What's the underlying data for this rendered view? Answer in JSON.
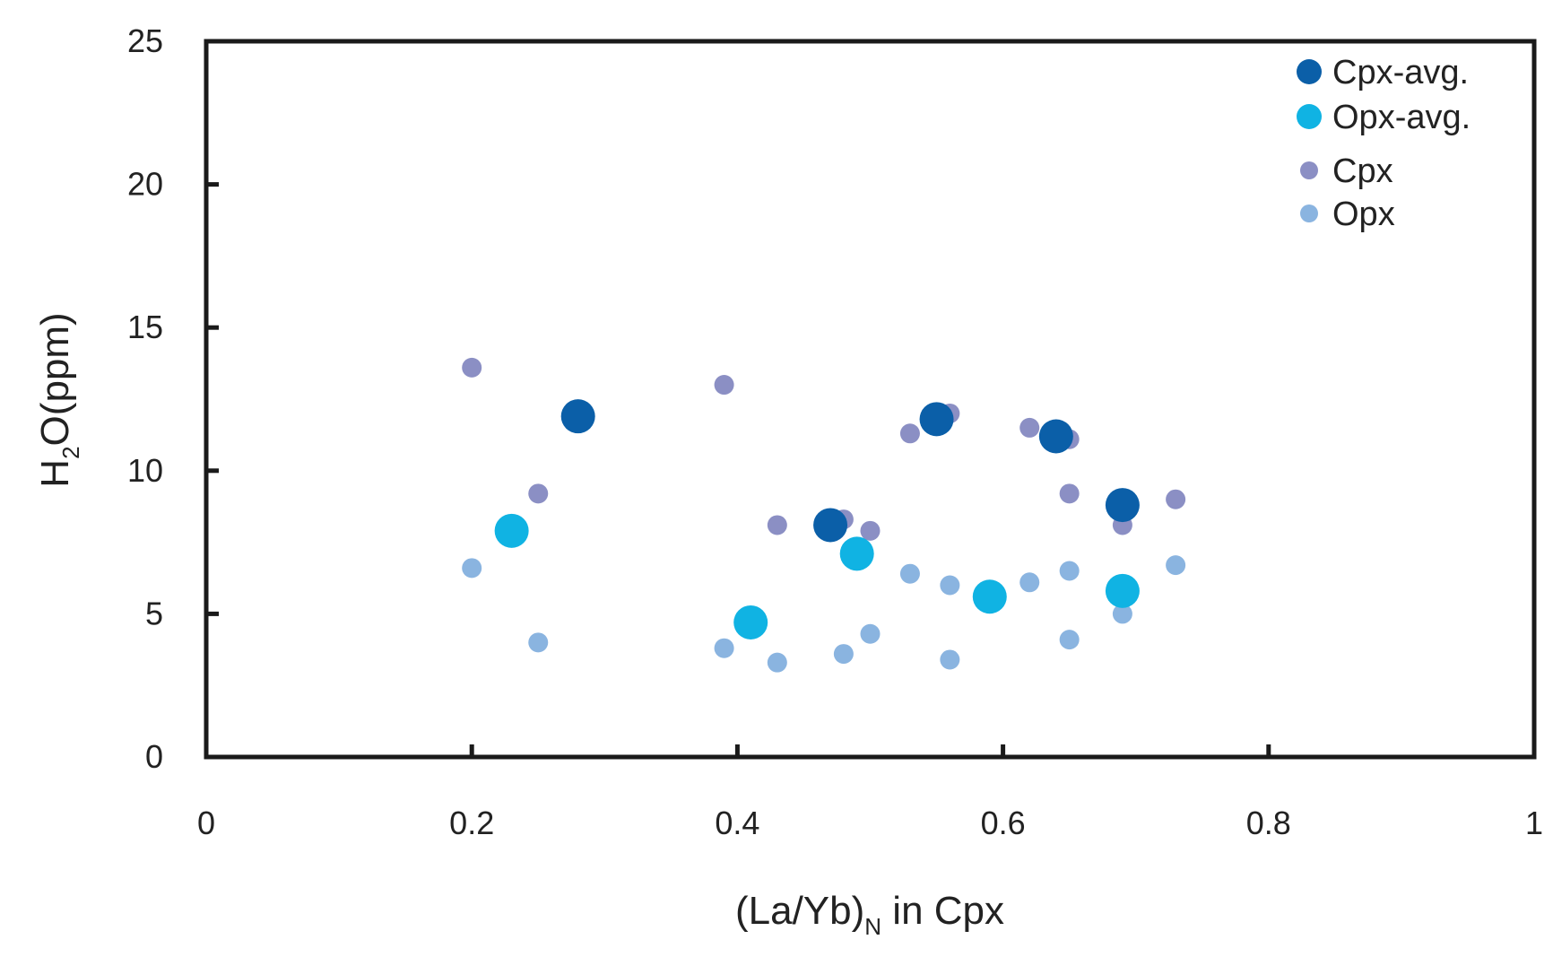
{
  "chart_data": {
    "type": "scatter",
    "xlabel": {
      "prefix": "(La/Yb)",
      "subscript": "N",
      "suffix": " in Cpx"
    },
    "ylabel": {
      "prefix": "H",
      "subscript": "2",
      "suffix": "O(ppm)"
    },
    "xlim": [
      0,
      1
    ],
    "ylim": [
      0,
      25
    ],
    "x_ticks": [
      0,
      0.2,
      0.4,
      0.6,
      0.8,
      1
    ],
    "x_tick_labels": [
      "0",
      "0.2",
      "0.4",
      "0.6",
      "0.8",
      "1"
    ],
    "y_ticks": [
      0,
      5,
      10,
      15,
      20,
      25
    ],
    "y_tick_labels": [
      "0",
      "5",
      "10",
      "15",
      "20",
      "25"
    ],
    "grid": false,
    "legend_position": "top-right",
    "series": [
      {
        "name": "Cpx-avg.",
        "color": "#0b5fa8",
        "marker_size": "large",
        "points": [
          [
            0.28,
            11.9
          ],
          [
            0.47,
            8.1
          ],
          [
            0.55,
            11.8
          ],
          [
            0.64,
            11.2
          ],
          [
            0.69,
            8.8
          ]
        ]
      },
      {
        "name": "Opx-avg.",
        "color": "#10b3e3",
        "marker_size": "large",
        "points": [
          [
            0.23,
            7.9
          ],
          [
            0.41,
            4.7
          ],
          [
            0.49,
            7.1
          ],
          [
            0.59,
            5.6
          ],
          [
            0.69,
            5.8
          ]
        ]
      },
      {
        "name": "Cpx",
        "color": "#8b8fc4",
        "marker_size": "small",
        "points": [
          [
            0.2,
            13.6
          ],
          [
            0.25,
            9.2
          ],
          [
            0.39,
            13.0
          ],
          [
            0.43,
            8.1
          ],
          [
            0.48,
            8.3
          ],
          [
            0.5,
            7.9
          ],
          [
            0.53,
            11.3
          ],
          [
            0.56,
            12.0
          ],
          [
            0.62,
            11.5
          ],
          [
            0.65,
            11.1
          ],
          [
            0.65,
            9.2
          ],
          [
            0.69,
            8.1
          ],
          [
            0.73,
            9.0
          ]
        ]
      },
      {
        "name": "Opx",
        "color": "#8ab4e0",
        "marker_size": "small",
        "points": [
          [
            0.2,
            6.6
          ],
          [
            0.25,
            4.0
          ],
          [
            0.39,
            3.8
          ],
          [
            0.43,
            3.3
          ],
          [
            0.48,
            3.6
          ],
          [
            0.5,
            4.3
          ],
          [
            0.53,
            6.4
          ],
          [
            0.56,
            3.4
          ],
          [
            0.56,
            6.0
          ],
          [
            0.62,
            6.1
          ],
          [
            0.65,
            6.5
          ],
          [
            0.65,
            4.1
          ],
          [
            0.69,
            5.0
          ],
          [
            0.73,
            6.7
          ]
        ]
      }
    ]
  }
}
